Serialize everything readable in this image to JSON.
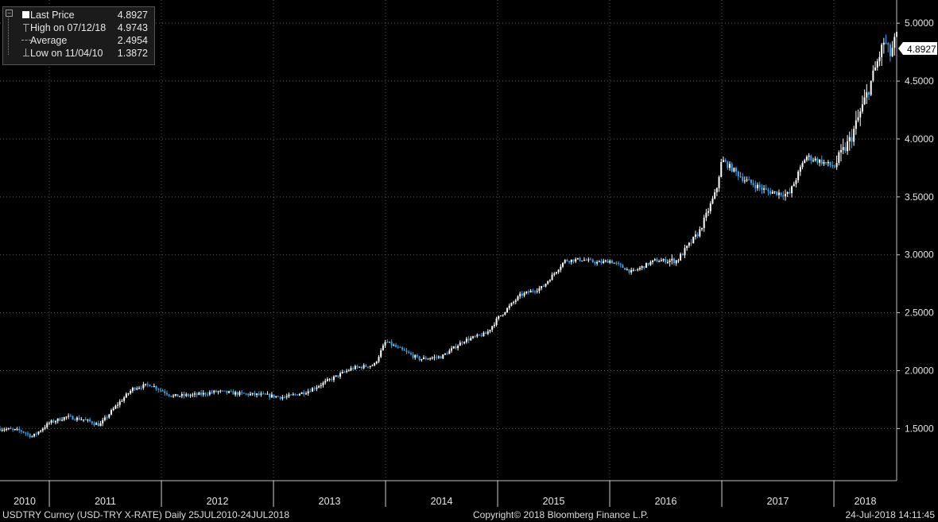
{
  "legend": {
    "last_price_label": "Last Price",
    "last_price_value": "4.8927",
    "high_label": "High on 07/12/18",
    "high_value": "4.9743",
    "average_label": "Average",
    "average_value": "2.4954",
    "low_label": "Low on 11/04/10",
    "low_value": "1.3872"
  },
  "price_tag": "4.8927",
  "footer": {
    "left": "USDTRY Curncy (USD-TRY X-RATE)  Daily 25JUL2010-24JUL2018",
    "center": "Copyright© 2018 Bloomberg Finance L.P.",
    "right": "24-Jul-2018 14:11:45"
  },
  "colors": {
    "background": "#000000",
    "candle_up": "#ffffff",
    "candle_down": "#3fa4e6",
    "grid": "#5a5a5a",
    "tag_bg": "#ffffff"
  },
  "chart_data": {
    "type": "line",
    "style": "candlestick",
    "series": [
      {
        "x": [
          2010.56,
          2010.75,
          2010.85,
          2011.0,
          2011.15,
          2011.3,
          2011.45,
          2011.6,
          2011.75,
          2011.9,
          2012.1,
          2012.3,
          2012.5,
          2012.7,
          2012.9,
          2013.1,
          2013.3,
          2013.5,
          2013.7,
          2013.9,
          2014.0,
          2014.1,
          2014.3,
          2014.5,
          2014.7,
          2014.9,
          2015.0,
          2015.2,
          2015.4,
          2015.6,
          2015.75,
          2015.9,
          2016.0,
          2016.2,
          2016.4,
          2016.6,
          2016.8,
          2016.95,
          2017.0,
          2017.2,
          2017.4,
          2017.6,
          2017.75,
          2017.9,
          2018.0,
          2018.15,
          2018.3,
          2018.45,
          2018.5,
          2018.56
        ],
        "values": [
          1.5,
          1.48,
          1.43,
          1.55,
          1.6,
          1.58,
          1.53,
          1.7,
          1.85,
          1.88,
          1.78,
          1.79,
          1.82,
          1.8,
          1.79,
          1.77,
          1.82,
          1.92,
          2.02,
          2.05,
          2.25,
          2.2,
          2.1,
          2.12,
          2.26,
          2.32,
          2.45,
          2.65,
          2.72,
          2.95,
          2.96,
          2.93,
          2.95,
          2.85,
          2.95,
          2.95,
          3.2,
          3.55,
          3.82,
          3.65,
          3.55,
          3.52,
          3.85,
          3.8,
          3.76,
          4.0,
          4.4,
          4.85,
          4.72,
          4.8927
        ]
      }
    ],
    "x_tick_labels": [
      "2010",
      "2011",
      "2012",
      "2013",
      "2014",
      "2015",
      "2016",
      "2017",
      "2018"
    ],
    "y_tick_labels": [
      "1.5000",
      "2.0000",
      "2.5000",
      "3.0000",
      "3.5000",
      "4.0000",
      "4.5000",
      "5.0000"
    ],
    "ylim": [
      1.05,
      5.2
    ],
    "xlim": [
      2010.56,
      2018.56
    ],
    "grid": true,
    "legend_position": "top-left"
  }
}
